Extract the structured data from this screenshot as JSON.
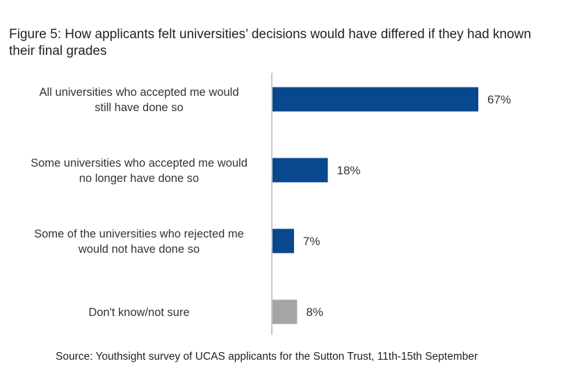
{
  "figure": {
    "title": "Figure 5: How applicants felt universities’ decisions would have differed if they had known their final grades",
    "source": "Source: Youthsight survey of UCAS applicants for the Sutton Trust, 11th-15th September"
  },
  "chart_data": {
    "type": "bar",
    "orientation": "horizontal",
    "title": "Figure 5: How applicants felt universities’ decisions would have differed if they had known their final grades",
    "categories": [
      [
        "All universities who accepted me would",
        "still have done so"
      ],
      [
        "Some universities who accepted me would",
        "no longer have done so"
      ],
      [
        "Some of the universities who rejected me",
        "would not have done so"
      ],
      [
        "Don't know/not sure"
      ]
    ],
    "values": [
      67,
      18,
      7,
      8
    ],
    "value_labels": [
      "67%",
      "18%",
      "7%",
      "8%"
    ],
    "colors": [
      "#08488f",
      "#08488f",
      "#08488f",
      "#a5a5a5"
    ],
    "xlim": [
      0,
      100
    ],
    "grid": false,
    "legend": "none"
  }
}
